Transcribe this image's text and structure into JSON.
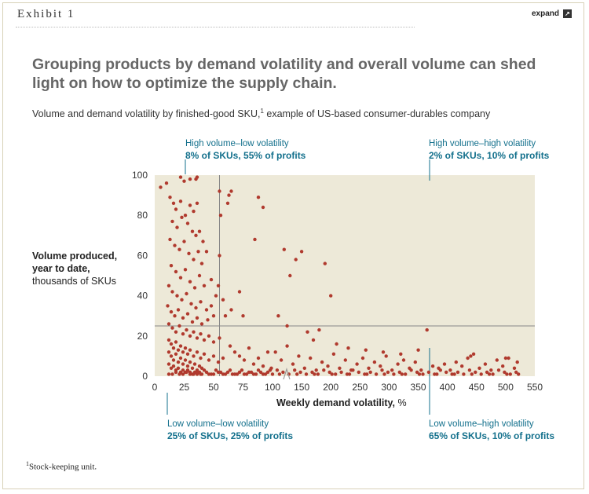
{
  "header": {
    "exhibit": "Exhibit 1",
    "expand_label": "expand"
  },
  "headline": "Grouping products by demand volatility and overall volume can shed light on how to optimize the supply chain.",
  "subtitle": {
    "text": "Volume and demand volatility by finished-good SKU,",
    "sup": "1",
    "rest": " example of US-based consumer-durables company"
  },
  "quadrants": {
    "top_left": {
      "label": "High volume–low volatility",
      "stat": "8% of SKUs, 55% of profits"
    },
    "top_right": {
      "label": "High volume–high volatility",
      "stat": "2% of SKUs, 10% of profits"
    },
    "bottom_left": {
      "label": "Low volume–low volatility",
      "stat": "25% of SKUs, 25% of profits"
    },
    "bottom_right": {
      "label": "Low volume–high volatility",
      "stat": "65% of SKUs, 10% of profits"
    }
  },
  "ylabel": {
    "bold": "Volume produced, year to date,",
    "rest": "thousands of SKUs"
  },
  "xlabel": {
    "bold": "Weekly demand volatility,",
    "unit": " %"
  },
  "footnote": {
    "sup": "1",
    "text": "Stock-keeping unit."
  },
  "colors": {
    "panel": "#ede9d8",
    "dot": "#b03a2e",
    "teal": "#13708c"
  },
  "chart_data": {
    "type": "scatter",
    "xlim": [
      0,
      550
    ],
    "ylim": [
      0,
      100
    ],
    "xticks": [
      "0",
      "25",
      "50",
      "75",
      "100",
      "150",
      "200",
      "250",
      "300",
      "350",
      "400",
      "450",
      "500",
      "550"
    ],
    "yticks": [
      "0",
      "20",
      "40",
      "60",
      "80",
      "100"
    ],
    "x_scale": "broken axis: 0–100 expanded, 100–550 compressed",
    "thresholds": {
      "x": 55,
      "y": 25
    },
    "points": [
      [
        5,
        94
      ],
      [
        10,
        96
      ],
      [
        22,
        99
      ],
      [
        25,
        97
      ],
      [
        30,
        98
      ],
      [
        35,
        98
      ],
      [
        36,
        99
      ],
      [
        13,
        89
      ],
      [
        16,
        86
      ],
      [
        18,
        83
      ],
      [
        22,
        87
      ],
      [
        26,
        80
      ],
      [
        30,
        85
      ],
      [
        33,
        82
      ],
      [
        36,
        86
      ],
      [
        15,
        77
      ],
      [
        19,
        74
      ],
      [
        23,
        79
      ],
      [
        28,
        76
      ],
      [
        32,
        72
      ],
      [
        35,
        70
      ],
      [
        13,
        68
      ],
      [
        17,
        65
      ],
      [
        21,
        63
      ],
      [
        25,
        67
      ],
      [
        29,
        61
      ],
      [
        33,
        58
      ],
      [
        37,
        62
      ],
      [
        40,
        56
      ],
      [
        14,
        55
      ],
      [
        18,
        52
      ],
      [
        22,
        49
      ],
      [
        26,
        53
      ],
      [
        30,
        47
      ],
      [
        34,
        44
      ],
      [
        38,
        50
      ],
      [
        42,
        45
      ],
      [
        12,
        45
      ],
      [
        15,
        42
      ],
      [
        19,
        40
      ],
      [
        23,
        38
      ],
      [
        27,
        41
      ],
      [
        31,
        36
      ],
      [
        35,
        34
      ],
      [
        39,
        37
      ],
      [
        44,
        33
      ],
      [
        48,
        35
      ],
      [
        11,
        35
      ],
      [
        14,
        32
      ],
      [
        17,
        30
      ],
      [
        20,
        33
      ],
      [
        24,
        29
      ],
      [
        28,
        31
      ],
      [
        32,
        27
      ],
      [
        36,
        29
      ],
      [
        40,
        26
      ],
      [
        45,
        28
      ],
      [
        50,
        30
      ],
      [
        12,
        26
      ],
      [
        15,
        24
      ],
      [
        18,
        22
      ],
      [
        21,
        25
      ],
      [
        24,
        21
      ],
      [
        27,
        23
      ],
      [
        30,
        20
      ],
      [
        33,
        22
      ],
      [
        36,
        19
      ],
      [
        39,
        21
      ],
      [
        42,
        18
      ],
      [
        46,
        20
      ],
      [
        50,
        17
      ],
      [
        55,
        19
      ],
      [
        12,
        18
      ],
      [
        14,
        16
      ],
      [
        16,
        14
      ],
      [
        18,
        17
      ],
      [
        20,
        13
      ],
      [
        22,
        15
      ],
      [
        24,
        12
      ],
      [
        26,
        14
      ],
      [
        28,
        11
      ],
      [
        30,
        13
      ],
      [
        33,
        10
      ],
      [
        36,
        12
      ],
      [
        39,
        9
      ],
      [
        42,
        11
      ],
      [
        46,
        8
      ],
      [
        50,
        10
      ],
      [
        54,
        7
      ],
      [
        58,
        9
      ],
      [
        12,
        12
      ],
      [
        14,
        10
      ],
      [
        16,
        8
      ],
      [
        18,
        11
      ],
      [
        20,
        7
      ],
      [
        22,
        9
      ],
      [
        24,
        6
      ],
      [
        26,
        8
      ],
      [
        28,
        5
      ],
      [
        30,
        7
      ],
      [
        32,
        4
      ],
      [
        34,
        6
      ],
      [
        36,
        3
      ],
      [
        38,
        5
      ],
      [
        40,
        4
      ],
      [
        12,
        6
      ],
      [
        14,
        4
      ],
      [
        16,
        5
      ],
      [
        18,
        3
      ],
      [
        20,
        4
      ],
      [
        22,
        2
      ],
      [
        24,
        3
      ],
      [
        26,
        2
      ],
      [
        28,
        3
      ],
      [
        30,
        2
      ],
      [
        32,
        1
      ],
      [
        34,
        2
      ],
      [
        36,
        1
      ],
      [
        38,
        2
      ],
      [
        40,
        1
      ],
      [
        44,
        2
      ],
      [
        48,
        1
      ],
      [
        52,
        3
      ],
      [
        56,
        2
      ],
      [
        60,
        1
      ],
      [
        64,
        3
      ],
      [
        68,
        1
      ],
      [
        72,
        2
      ],
      [
        76,
        1
      ],
      [
        80,
        2
      ],
      [
        84,
        1
      ],
      [
        88,
        3
      ],
      [
        92,
        1
      ],
      [
        96,
        2
      ],
      [
        100,
        1
      ],
      [
        12,
        1
      ],
      [
        15,
        1
      ],
      [
        18,
        2
      ],
      [
        21,
        1
      ],
      [
        24,
        1
      ],
      [
        27,
        2
      ],
      [
        30,
        1
      ],
      [
        33,
        1
      ],
      [
        36,
        2
      ],
      [
        39,
        1
      ],
      [
        42,
        3
      ],
      [
        46,
        1
      ],
      [
        50,
        1
      ],
      [
        54,
        2
      ],
      [
        58,
        1
      ],
      [
        62,
        2
      ],
      [
        66,
        1
      ],
      [
        70,
        1
      ],
      [
        74,
        3
      ],
      [
        78,
        1
      ],
      [
        82,
        2
      ],
      [
        86,
        1
      ],
      [
        90,
        2
      ],
      [
        94,
        1
      ],
      [
        98,
        3
      ],
      [
        55,
        92
      ],
      [
        63,
        90
      ],
      [
        65,
        92
      ],
      [
        56,
        80
      ],
      [
        62,
        86
      ],
      [
        88,
        89
      ],
      [
        92,
        84
      ],
      [
        85,
        68
      ],
      [
        72,
        42
      ],
      [
        55,
        60
      ],
      [
        60,
        30
      ],
      [
        65,
        33
      ],
      [
        75,
        30
      ],
      [
        52,
        40
      ],
      [
        48,
        48
      ],
      [
        44,
        62
      ],
      [
        41,
        67
      ],
      [
        38,
        72
      ],
      [
        54,
        45
      ],
      [
        58,
        38
      ],
      [
        64,
        15
      ],
      [
        68,
        12
      ],
      [
        72,
        10
      ],
      [
        76,
        8
      ],
      [
        80,
        14
      ],
      [
        84,
        6
      ],
      [
        88,
        9
      ],
      [
        92,
        5
      ],
      [
        96,
        12
      ],
      [
        99,
        4
      ],
      [
        120,
        63
      ],
      [
        130,
        50
      ],
      [
        140,
        58
      ],
      [
        150,
        62
      ],
      [
        190,
        56
      ],
      [
        200,
        40
      ],
      [
        110,
        30
      ],
      [
        125,
        25
      ],
      [
        160,
        22
      ],
      [
        180,
        23
      ],
      [
        105,
        12
      ],
      [
        115,
        8
      ],
      [
        125,
        15
      ],
      [
        135,
        6
      ],
      [
        145,
        10
      ],
      [
        155,
        4
      ],
      [
        165,
        9
      ],
      [
        175,
        3
      ],
      [
        185,
        7
      ],
      [
        195,
        5
      ],
      [
        205,
        11
      ],
      [
        215,
        4
      ],
      [
        225,
        8
      ],
      [
        235,
        3
      ],
      [
        245,
        6
      ],
      [
        255,
        9
      ],
      [
        265,
        4
      ],
      [
        275,
        7
      ],
      [
        285,
        5
      ],
      [
        295,
        10
      ],
      [
        305,
        3
      ],
      [
        315,
        6
      ],
      [
        325,
        8
      ],
      [
        335,
        4
      ],
      [
        345,
        7
      ],
      [
        355,
        3
      ],
      [
        365,
        23
      ],
      [
        375,
        5
      ],
      [
        385,
        4
      ],
      [
        395,
        6
      ],
      [
        405,
        3
      ],
      [
        415,
        7
      ],
      [
        425,
        5
      ],
      [
        435,
        9
      ],
      [
        445,
        11
      ],
      [
        455,
        4
      ],
      [
        465,
        6
      ],
      [
        475,
        3
      ],
      [
        485,
        8
      ],
      [
        495,
        5
      ],
      [
        505,
        9
      ],
      [
        515,
        4
      ],
      [
        520,
        7
      ],
      [
        108,
        3
      ],
      [
        118,
        2
      ],
      [
        128,
        1
      ],
      [
        138,
        3
      ],
      [
        148,
        2
      ],
      [
        158,
        1
      ],
      [
        168,
        2
      ],
      [
        178,
        1
      ],
      [
        188,
        3
      ],
      [
        198,
        2
      ],
      [
        208,
        1
      ],
      [
        218,
        2
      ],
      [
        228,
        1
      ],
      [
        238,
        3
      ],
      [
        248,
        2
      ],
      [
        258,
        1
      ],
      [
        268,
        2
      ],
      [
        278,
        1
      ],
      [
        288,
        3
      ],
      [
        298,
        2
      ],
      [
        308,
        1
      ],
      [
        318,
        2
      ],
      [
        328,
        1
      ],
      [
        338,
        3
      ],
      [
        348,
        2
      ],
      [
        358,
        1
      ],
      [
        368,
        2
      ],
      [
        378,
        1
      ],
      [
        388,
        3
      ],
      [
        398,
        2
      ],
      [
        408,
        1
      ],
      [
        418,
        2
      ],
      [
        428,
        1
      ],
      [
        438,
        3
      ],
      [
        448,
        2
      ],
      [
        458,
        1
      ],
      [
        468,
        2
      ],
      [
        478,
        1
      ],
      [
        488,
        3
      ],
      [
        498,
        2
      ],
      [
        508,
        1
      ],
      [
        518,
        2
      ],
      [
        112,
        1
      ],
      [
        142,
        1
      ],
      [
        172,
        1
      ],
      [
        202,
        1
      ],
      [
        232,
        1
      ],
      [
        262,
        1
      ],
      [
        292,
        1
      ],
      [
        322,
        1
      ],
      [
        352,
        1
      ],
      [
        382,
        1
      ],
      [
        412,
        1
      ],
      [
        442,
        1
      ],
      [
        472,
        1
      ],
      [
        502,
        1
      ],
      [
        522,
        1
      ],
      [
        170,
        18
      ],
      [
        210,
        16
      ],
      [
        230,
        14
      ],
      [
        260,
        13
      ],
      [
        290,
        12
      ],
      [
        320,
        11
      ],
      [
        350,
        13
      ],
      [
        440,
        10
      ],
      [
        500,
        9
      ]
    ]
  }
}
